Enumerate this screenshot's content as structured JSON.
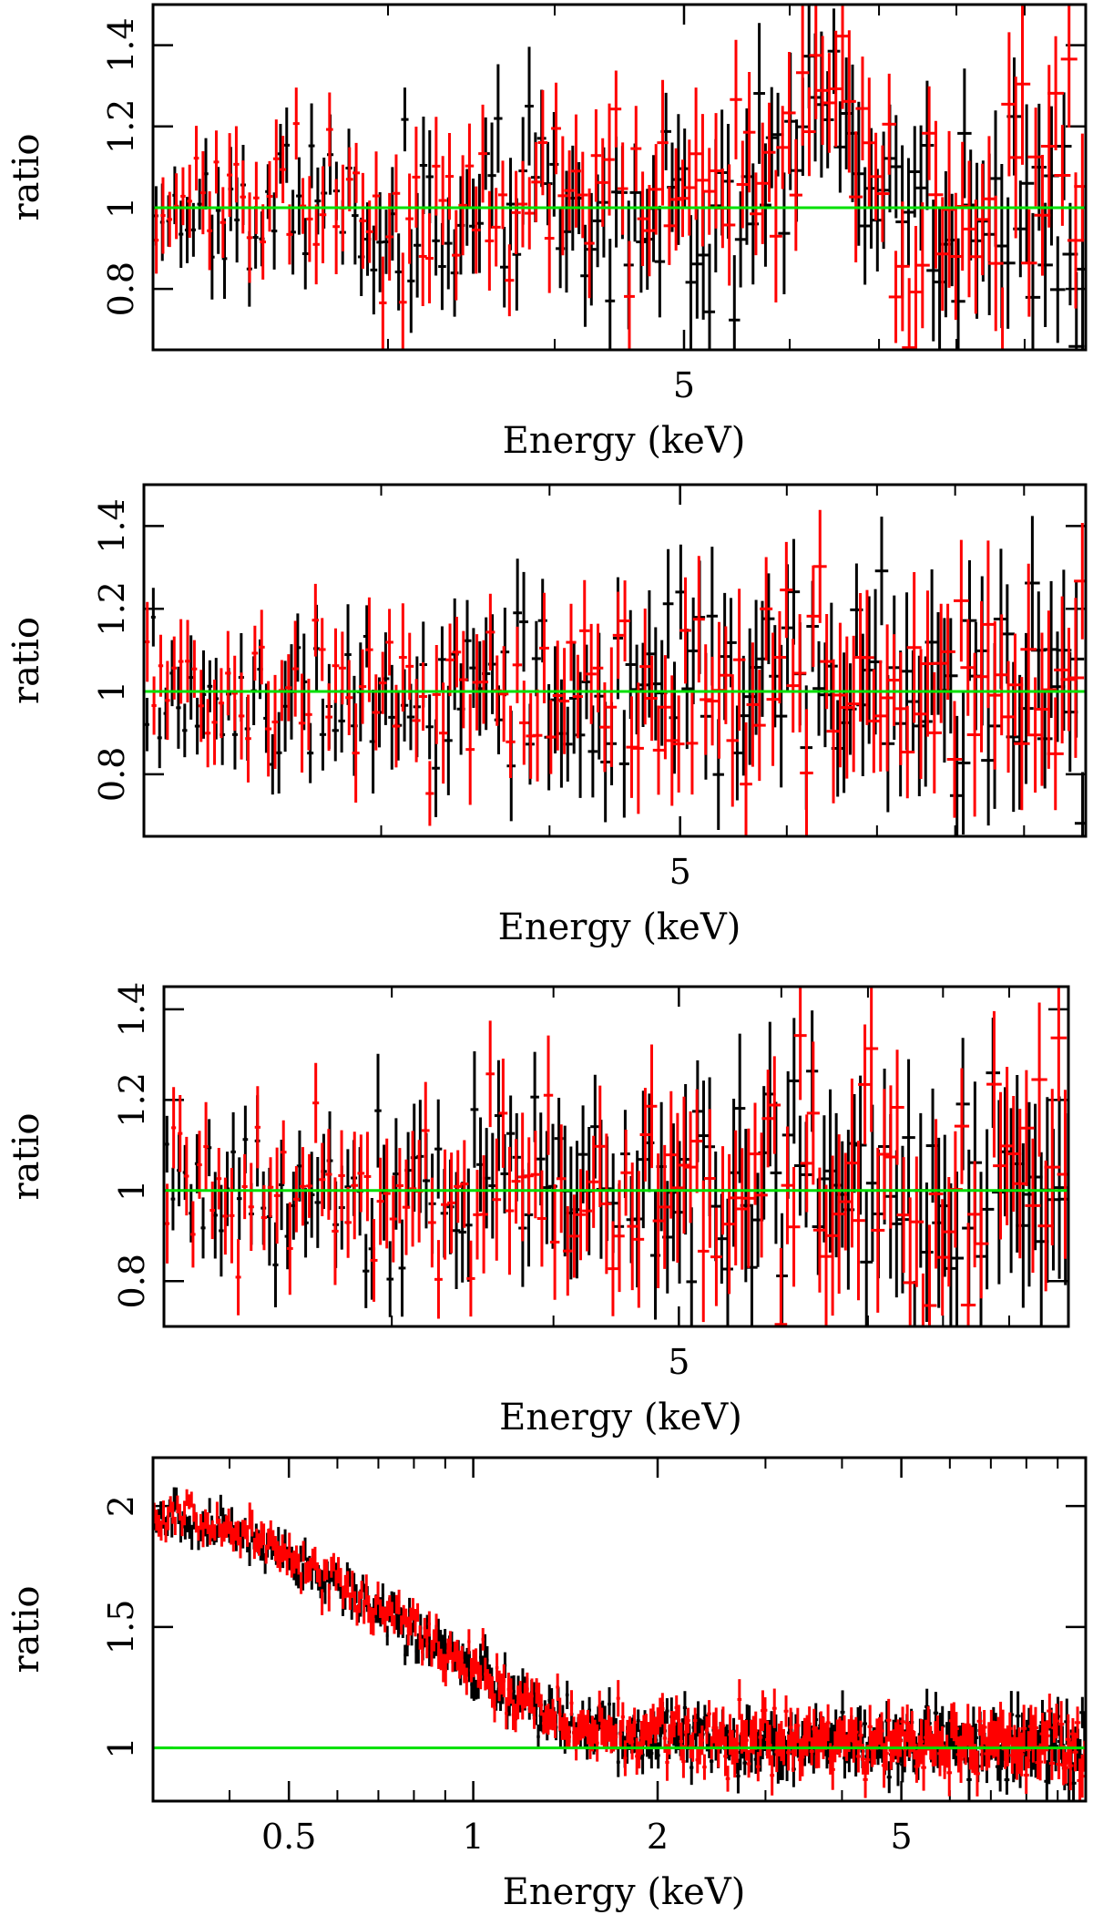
{
  "chart_data": [
    {
      "type": "scatter",
      "panel": 1,
      "title": "",
      "xlabel": "Energy (keV)",
      "ylabel": "ratio",
      "xscale": "log",
      "xlim": [
        2.0,
        10.0
      ],
      "ylim": [
        0.65,
        1.5
      ],
      "xticks_major": [
        5
      ],
      "xticks_minor": [
        2,
        3,
        4,
        6,
        7,
        8,
        9
      ],
      "xtick_labels": [
        "5"
      ],
      "yticks": [
        0.8,
        1.0,
        1.2,
        1.4
      ],
      "ytick_labels": [
        "0.8",
        "1",
        "1.2",
        "1.4"
      ],
      "reference_line": 1.0,
      "feature": {
        "center_keV": 6.4,
        "peak_ratio": 1.3,
        "width_keV": 0.35
      },
      "series": [
        {
          "name": "black",
          "color": "#000000",
          "points": 150,
          "seed": 11,
          "scatter": 0.09
        },
        {
          "name": "red",
          "color": "#ff0000",
          "points": 140,
          "seed": 23,
          "scatter": 0.09
        }
      ]
    },
    {
      "type": "scatter",
      "panel": 2,
      "title": "",
      "xlabel": "Energy (keV)",
      "ylabel": "ratio",
      "xscale": "log",
      "xlim": [
        2.0,
        10.0
      ],
      "ylim": [
        0.65,
        1.5
      ],
      "xticks_major": [
        5
      ],
      "xticks_minor": [
        2,
        3,
        4,
        6,
        7,
        8,
        9
      ],
      "xtick_labels": [
        "5"
      ],
      "yticks": [
        0.8,
        1.0,
        1.2,
        1.4
      ],
      "ytick_labels": [
        "0.8",
        "1",
        "1.2",
        "1.4"
      ],
      "reference_line": 1.0,
      "feature": {
        "center_keV": 6.4,
        "peak_ratio": 1.08,
        "width_keV": 0.35
      },
      "series": [
        {
          "name": "black",
          "color": "#000000",
          "points": 150,
          "seed": 37,
          "scatter": 0.09
        },
        {
          "name": "red",
          "color": "#ff0000",
          "points": 140,
          "seed": 41,
          "scatter": 0.09
        }
      ]
    },
    {
      "type": "scatter",
      "panel": 3,
      "title": "",
      "xlabel": "Energy (keV)",
      "ylabel": "ratio",
      "xscale": "log",
      "xlim": [
        2.0,
        10.0
      ],
      "ylim": [
        0.7,
        1.45
      ],
      "xticks_major": [
        5
      ],
      "xticks_minor": [
        2,
        3,
        4,
        6,
        7,
        8,
        9
      ],
      "xtick_labels": [
        "5"
      ],
      "yticks": [
        0.8,
        1.0,
        1.2,
        1.4
      ],
      "ytick_labels": [
        "0.8",
        "1",
        "1.2",
        "1.4"
      ],
      "reference_line": 1.0,
      "feature": {
        "center_keV": 6.4,
        "peak_ratio": 1.0,
        "width_keV": 0.35
      },
      "series": [
        {
          "name": "black",
          "color": "#000000",
          "points": 150,
          "seed": 53,
          "scatter": 0.09
        },
        {
          "name": "red",
          "color": "#ff0000",
          "points": 140,
          "seed": 67,
          "scatter": 0.09
        }
      ]
    },
    {
      "type": "scatter",
      "panel": 4,
      "title": "",
      "xlabel": "Energy (keV)",
      "ylabel": "ratio",
      "xscale": "log",
      "xlim": [
        0.3,
        10.0
      ],
      "ylim": [
        0.78,
        2.2
      ],
      "xticks_major": [
        0.5,
        1,
        2,
        5
      ],
      "xticks_minor": [
        0.4,
        0.6,
        0.7,
        0.8,
        0.9,
        3,
        4,
        6,
        7,
        8,
        9
      ],
      "xtick_labels": [
        "0.5",
        "1",
        "2",
        "5"
      ],
      "yticks": [
        1.0,
        1.5,
        2.0
      ],
      "ytick_labels": [
        "1",
        "1.5",
        "2"
      ],
      "reference_line": 1.0,
      "soft_excess": {
        "ratio_at_0p3_keV": 1.95,
        "ratio_at_2_keV": 1.05,
        "ratio_at_10_keV": 1.0
      },
      "series": [
        {
          "name": "black",
          "color": "#000000",
          "points": 420,
          "seed": 71,
          "scatter": 0.045
        },
        {
          "name": "red",
          "color": "#ff0000",
          "points": 400,
          "seed": 83,
          "scatter": 0.045
        }
      ]
    }
  ]
}
